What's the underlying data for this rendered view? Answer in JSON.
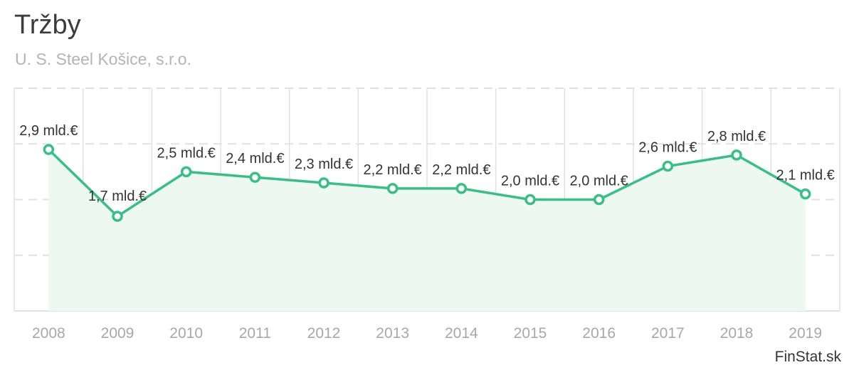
{
  "title": "Tržby",
  "subtitle": "U. S. Steel Košice, s.r.o.",
  "credit": "FinStat.sk",
  "colors": {
    "line": "#36bf87",
    "area": "#eef8f3",
    "grid": "#e1e1e1",
    "tick_label": "#a8a8a8",
    "data_label": "#333333"
  },
  "chart_data": {
    "type": "line",
    "title": "Tržby",
    "subtitle": "U. S. Steel Košice, s.r.o.",
    "categories": [
      "2008",
      "2009",
      "2010",
      "2011",
      "2012",
      "2013",
      "2014",
      "2015",
      "2016",
      "2017",
      "2018",
      "2019"
    ],
    "values": [
      2.9,
      1.7,
      2.5,
      2.4,
      2.3,
      2.2,
      2.2,
      2.0,
      2.0,
      2.6,
      2.8,
      2.1
    ],
    "labels": [
      "2,9 mld.€",
      "1,7 mld.€",
      "2,5 mld.€",
      "2,4 mld.€",
      "2,3 mld.€",
      "2,2 mld.€",
      "2,2 mld.€",
      "2,0 mld.€",
      "2,0 mld.€",
      "2,6 mld.€",
      "2,8 mld.€",
      "2,1 mld.€"
    ],
    "ylim": [
      0,
      4
    ],
    "xlabel": "",
    "ylabel": "",
    "grid": true,
    "legend": "none"
  }
}
